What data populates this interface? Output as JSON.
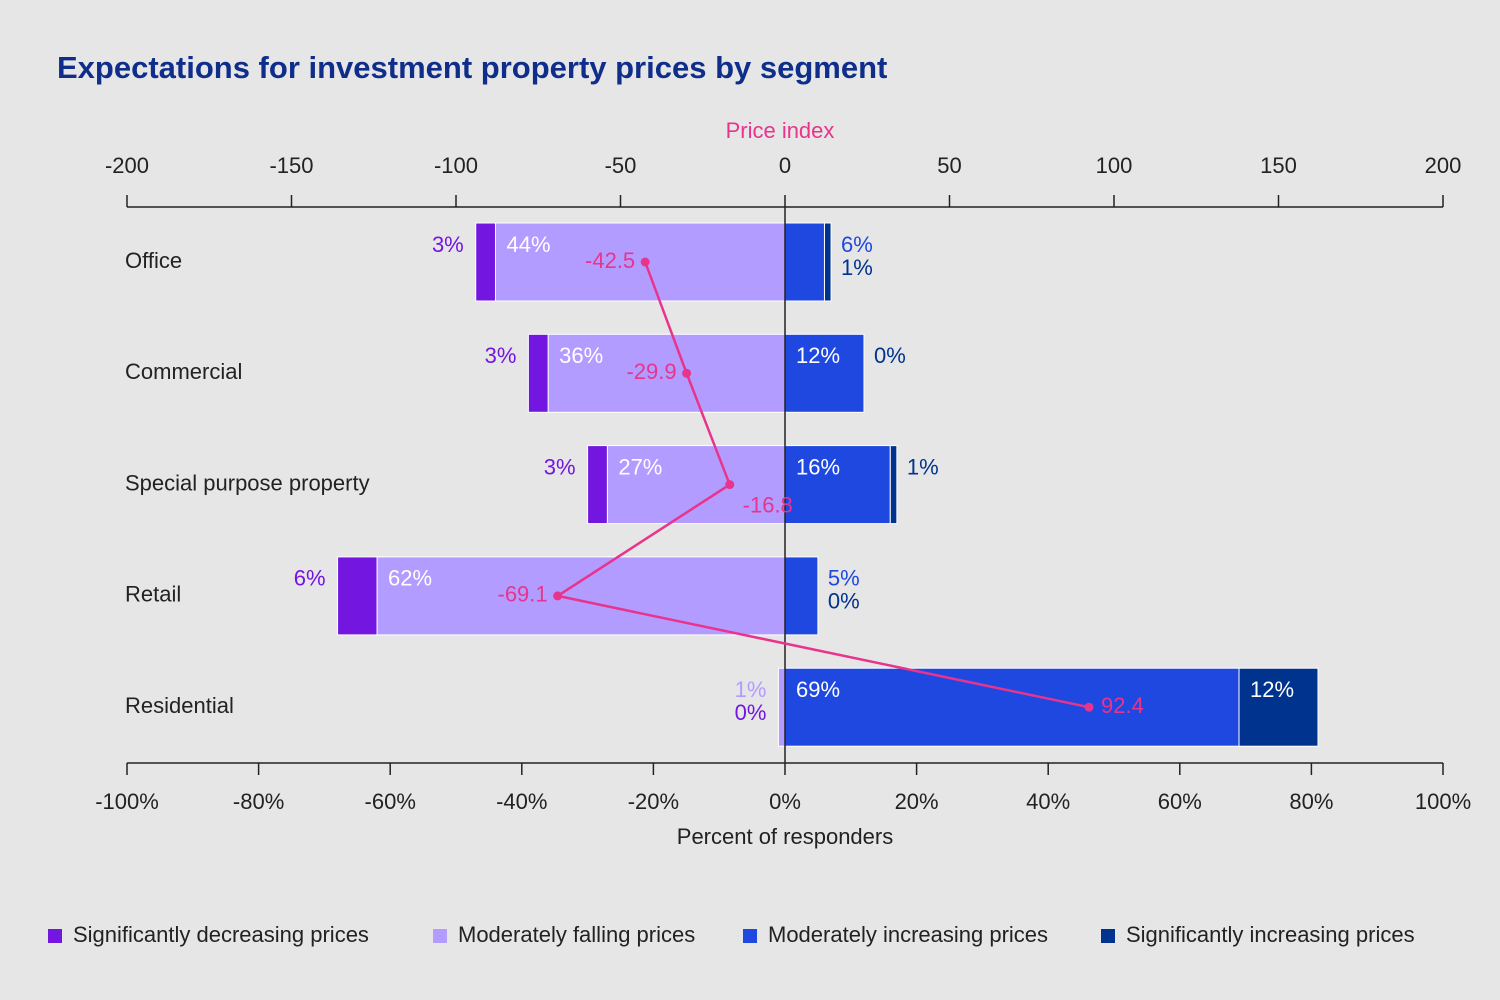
{
  "chart_data": {
    "type": "bar",
    "orientation": "horizontal",
    "title": "Expectations for investment property prices by segment",
    "categories": [
      "Office",
      "Commercial",
      "Special purpose property",
      "Retail",
      "Residential"
    ],
    "series": [
      {
        "name": "Significantly decreasing prices",
        "color": "#7316e0",
        "values": [
          -3,
          -3,
          -3,
          -6,
          0
        ],
        "value_labels": [
          "3%",
          "3%",
          "3%",
          "6%",
          "0%"
        ]
      },
      {
        "name": "Moderately falling prices",
        "color": "#b39cff",
        "values": [
          -44,
          -36,
          -27,
          -62,
          -1
        ],
        "value_labels": [
          "44%",
          "36%",
          "27%",
          "62%",
          "1%"
        ]
      },
      {
        "name": "Moderately increasing prices",
        "color": "#1e48e0",
        "values": [
          6,
          12,
          16,
          5,
          69
        ],
        "value_labels": [
          "6%",
          "12%",
          "16%",
          "5%",
          "69%"
        ]
      },
      {
        "name": "Significantly increasing prices",
        "color": "#00338d",
        "values": [
          1,
          0,
          1,
          0,
          12
        ],
        "value_labels": [
          "1%",
          "0%",
          "1%",
          "0%",
          "12%"
        ]
      }
    ],
    "xlabel": "Percent of responders",
    "xlim": [
      -100,
      100
    ],
    "xticks": [
      {
        "value": -100,
        "label": "-100%"
      },
      {
        "value": -80,
        "label": "-80%"
      },
      {
        "value": -60,
        "label": "-60%"
      },
      {
        "value": -40,
        "label": "-40%"
      },
      {
        "value": -20,
        "label": "-20%"
      },
      {
        "value": 0,
        "label": "0%"
      },
      {
        "value": 20,
        "label": "20%"
      },
      {
        "value": 40,
        "label": "40%"
      },
      {
        "value": 60,
        "label": "60%"
      },
      {
        "value": 80,
        "label": "80%"
      },
      {
        "value": 100,
        "label": "100%"
      }
    ],
    "price_index": {
      "type": "line",
      "axis": "x2",
      "color": "#e8348c",
      "values": [
        -42.5,
        -29.9,
        -16.8,
        -69.1,
        92.4
      ]
    },
    "x2label": "Price index",
    "x2lim": [
      -200,
      200
    ],
    "x2ticks": [
      -200,
      -150,
      -100,
      -50,
      0,
      50,
      100,
      150,
      200
    ],
    "legend": "bottom"
  }
}
